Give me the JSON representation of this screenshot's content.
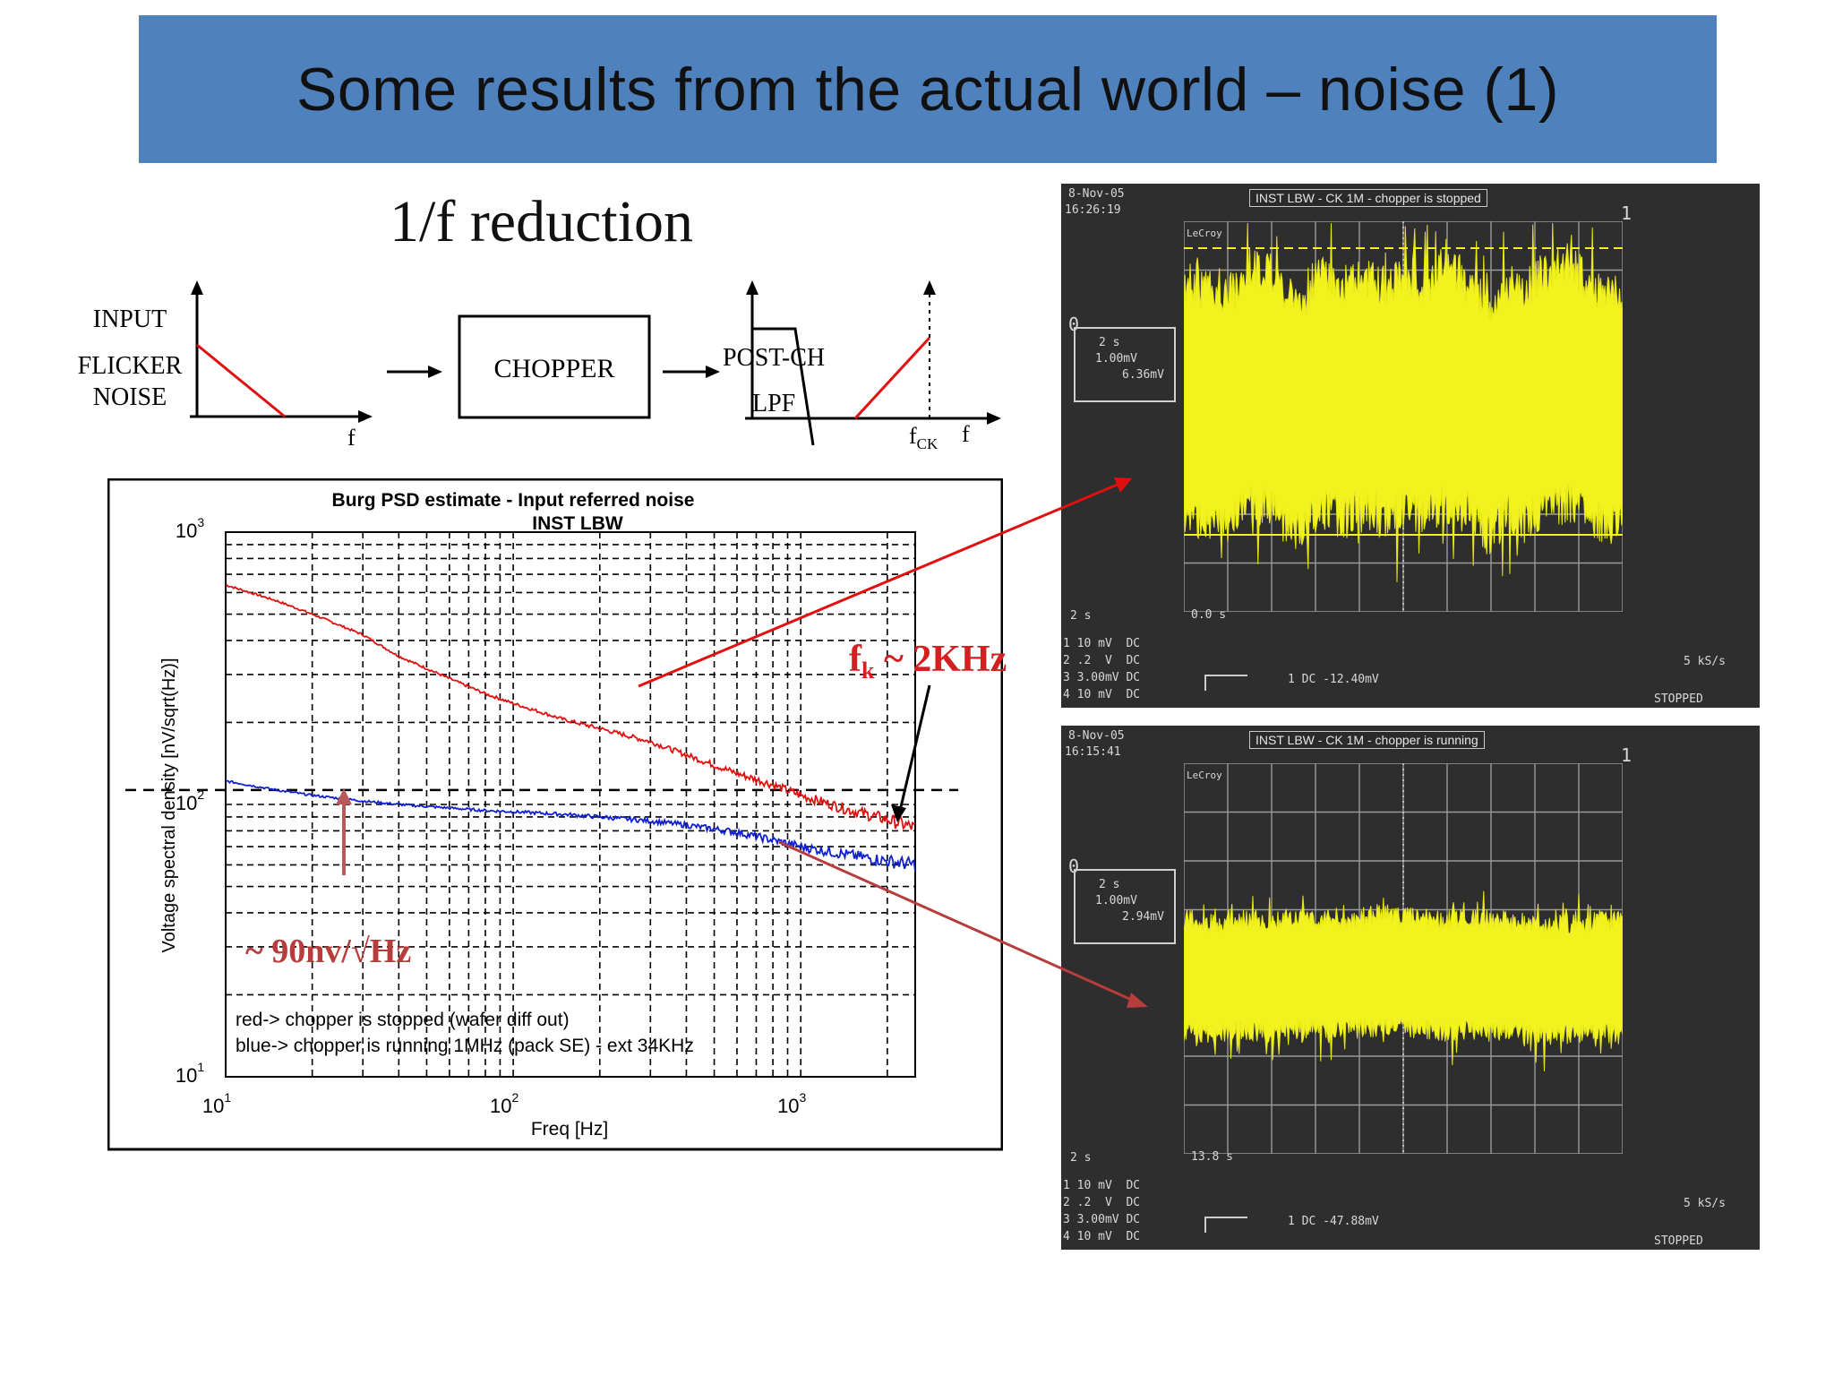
{
  "slide": {
    "title": "Some results from the actual world – noise (1)",
    "subtitle": "1/f reduction"
  },
  "diagram": {
    "input_label_1": "INPUT",
    "input_label_2": "FLICKER",
    "input_label_3": "NOISE",
    "axis_f_1": "f",
    "chopper_label": "CHOPPER",
    "postch_label": "POST-CH",
    "lpf_label": "LPF",
    "fck_main": "f",
    "fck_sub": "CK",
    "axis_f_2": "f"
  },
  "annotations": {
    "fk_main": "f",
    "fk_sub": "k",
    "fk_rest": " ~ 2KHz",
    "noise_level": "~ 90nv/√Hz"
  },
  "chart_data": {
    "type": "line",
    "title": "Burg PSD estimate - Input referred noise",
    "subtitle": "INST LBW",
    "xlabel": "Freq [Hz]",
    "ylabel": "Voltage spectral density [nV/sqrt(Hz)]",
    "x_scale": "log",
    "y_scale": "log",
    "xlim": [
      10,
      2500
    ],
    "ylim": [
      10,
      1000
    ],
    "x_ticks": [
      {
        "value": 10,
        "base": "10",
        "exp": "1"
      },
      {
        "value": 100,
        "base": "10",
        "exp": "2"
      },
      {
        "value": 1000,
        "base": "10",
        "exp": "3"
      }
    ],
    "y_ticks": [
      {
        "value": 10,
        "base": "10",
        "exp": "1"
      },
      {
        "value": 100,
        "base": "10",
        "exp": "2"
      },
      {
        "value": 1000,
        "base": "10",
        "exp": "3"
      }
    ],
    "grid": true,
    "legend_note_1": "red-> chopper is stopped (wafer diff out)",
    "legend_note_2": "blue-> chopper is running 1MHz (pack SE) - ext 34KHz",
    "reference_level": 113,
    "series": [
      {
        "color": "#e01010",
        "x": [
          10,
          15,
          20,
          30,
          40,
          60,
          80,
          100,
          150,
          200,
          300,
          400,
          600,
          800,
          1000,
          1500,
          2000,
          2500
        ],
        "y": [
          640,
          560,
          500,
          420,
          350,
          290,
          255,
          235,
          205,
          190,
          170,
          152,
          130,
          118,
          108,
          95,
          88,
          82
        ]
      },
      {
        "color": "#1020d0",
        "x": [
          10,
          15,
          20,
          30,
          40,
          60,
          80,
          100,
          150,
          200,
          300,
          400,
          600,
          800,
          1000,
          1500,
          2000,
          2500
        ],
        "y": [
          122,
          113,
          108,
          103,
          100,
          97,
          95,
          94,
          92,
          90,
          87,
          84,
          79,
          74,
          70,
          65,
          62,
          60
        ]
      }
    ]
  },
  "scope_top": {
    "date": "8-Nov-05",
    "time": "16:26:19",
    "header": "INST LBW - CK 1M - chopper is stopped",
    "brand": "LeCroy",
    "ch_marker": "1",
    "level_marker": "0",
    "box_1": "2 s",
    "box_2": "1.00mV",
    "box_3": "6.36mV",
    "timebase": "2 s",
    "delay": "0.0 s",
    "chan_1": "1 10 mV  DC",
    "chan_2": "2 .2  V  DC",
    "chan_3": "3 3.00mV DC",
    "chan_4": "4 10 mV  DC",
    "trigger": "1 DC -12.40mV",
    "rate": "5 kS/s",
    "state": "STOPPED"
  },
  "scope_bottom": {
    "date": "8-Nov-05",
    "time": "16:15:41",
    "header": "INST LBW - CK 1M - chopper is running",
    "brand": "LeCroy",
    "ch_marker": "1",
    "level_marker": "0",
    "box_1": "2 s",
    "box_2": "1.00mV",
    "box_3": "2.94mV",
    "timebase": "2 s",
    "delay": "13.8 s",
    "chan_1": "1 10 mV  DC",
    "chan_2": "2 .2  V  DC",
    "chan_3": "3 3.00mV DC",
    "chan_4": "4 10 mV  DC",
    "trigger": "1 DC -47.88mV",
    "rate": "5 kS/s",
    "state": "STOPPED"
  }
}
